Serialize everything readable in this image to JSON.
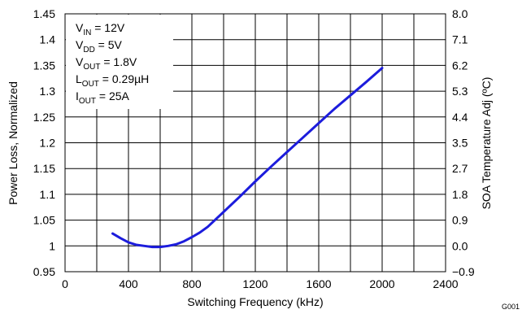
{
  "chart_data": {
    "type": "line",
    "title": "",
    "xlabel": "Switching Frequency (kHz)",
    "ylabel": "Power Loss, Normalized",
    "ylabel_right": "SOA Temperature Adj (ºC)",
    "xlim": [
      0,
      2400
    ],
    "ylim": [
      0.95,
      1.45
    ],
    "x_ticks": [
      "0",
      "400",
      "800",
      "1200",
      "1600",
      "2000",
      "2400"
    ],
    "y_ticks": [
      "0.95",
      "1",
      "1.05",
      "1.1",
      "1.15",
      "1.2",
      "1.25",
      "1.3",
      "1.35",
      "1.4",
      "1.45"
    ],
    "y_right_ticks": [
      "−0.9",
      "0.0",
      "0.9",
      "1.8",
      "2.7",
      "3.5",
      "4.4",
      "5.3",
      "6.2",
      "7.1",
      "8.0"
    ],
    "grid": true,
    "annotations": [
      {
        "main": "V",
        "sub": "IN",
        "rest": " = 12V"
      },
      {
        "main": "V",
        "sub": "DD",
        "rest": " = 5V"
      },
      {
        "main": "V",
        "sub": "OUT",
        "rest": " = 1.8V"
      },
      {
        "main": "L",
        "sub": "OUT",
        "rest": " = 0.29µH"
      },
      {
        "main": "I",
        "sub": "OUT",
        "rest": " = 25A"
      }
    ],
    "series": [
      {
        "color": "#1c1cdc",
        "x": [
          300,
          350,
          400,
          450,
          500,
          550,
          600,
          650,
          700,
          750,
          800,
          850,
          900,
          1000,
          1100,
          1200,
          1300,
          1400,
          1500,
          1600,
          1700,
          1800,
          1900,
          2000
        ],
        "y": [
          1.024,
          1.015,
          1.007,
          1.002,
          1.0,
          0.998,
          0.998,
          1.0,
          1.003,
          1.009,
          1.017,
          1.026,
          1.037,
          1.066,
          1.095,
          1.125,
          1.154,
          1.182,
          1.21,
          1.238,
          1.266,
          1.292,
          1.318,
          1.345
        ]
      }
    ]
  },
  "figure_code": "G001"
}
